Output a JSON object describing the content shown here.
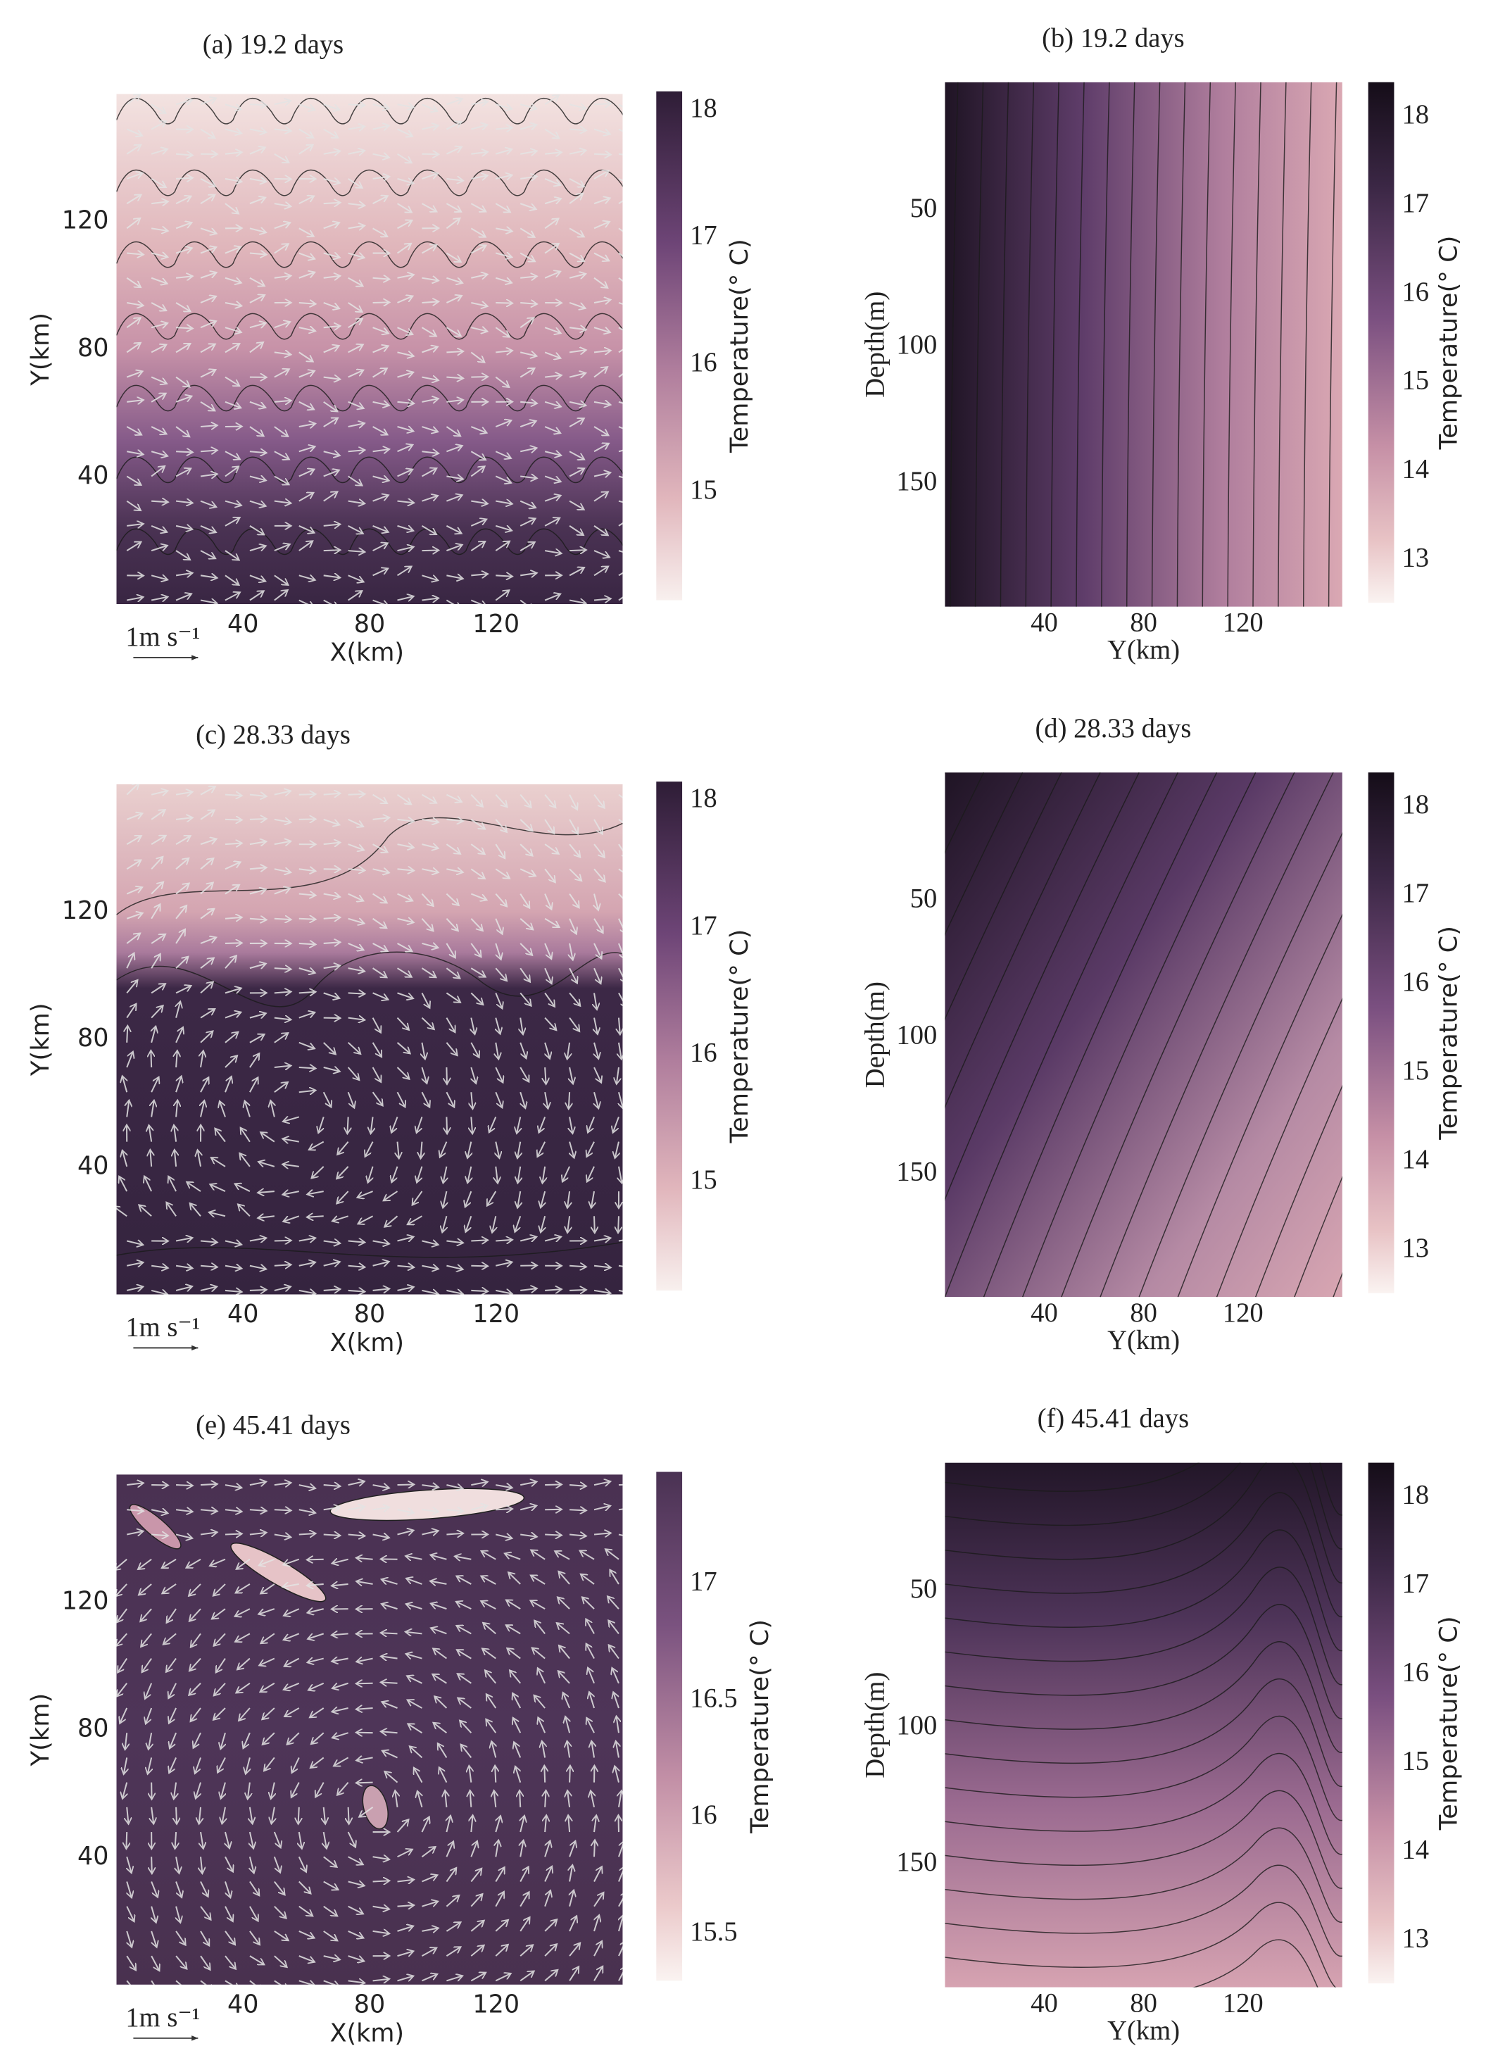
{
  "chart_data": [
    {
      "type": "heatmap",
      "title": "(a) 19.2 days",
      "xlabel": "X(km)",
      "ylabel": "Y(km)",
      "xlim": [
        0,
        160
      ],
      "ylim": [
        0,
        160
      ],
      "xticks": [
        40,
        80,
        120
      ],
      "yticks": [
        40,
        80,
        120
      ],
      "quiver_key": "1m s⁻¹",
      "colorbar": {
        "label": "Temperature(° C)",
        "lim": [
          14.15,
          18.15
        ],
        "ticks": [
          15,
          16,
          17,
          18
        ]
      }
    },
    {
      "type": "heatmap",
      "title": "(b) 19.2 days",
      "xlabel": "Y(km)",
      "ylabel": "Depth(m)",
      "xlim": [
        0,
        160
      ],
      "ylim": [
        195,
        3
      ],
      "xticks": [
        40,
        80,
        120
      ],
      "yticks": [
        50,
        100,
        150
      ],
      "colorbar": {
        "label": "Temperature(° C)",
        "lim": [
          12.52,
          18.39
        ],
        "ticks": [
          13,
          14,
          15,
          16,
          17,
          18
        ]
      }
    },
    {
      "type": "heatmap",
      "title": "(c) 28.33 days",
      "xlabel": "X(km)",
      "ylabel": "Y(km)",
      "xlim": [
        0,
        160
      ],
      "ylim": [
        0,
        160
      ],
      "xticks": [
        40,
        80,
        120
      ],
      "yticks": [
        40,
        80,
        120
      ],
      "quiver_key": "1m s⁻¹",
      "colorbar": {
        "label": "Temperature(° C)",
        "lim": [
          14.15,
          18.15
        ],
        "ticks": [
          15,
          16,
          17,
          18
        ]
      }
    },
    {
      "type": "heatmap",
      "title": "(d) 28.33 days",
      "xlabel": "Y(km)",
      "ylabel": "Depth(m)",
      "xlim": [
        0,
        160
      ],
      "ylim": [
        195,
        3
      ],
      "xticks": [
        40,
        80,
        120
      ],
      "yticks": [
        50,
        100,
        150
      ],
      "colorbar": {
        "label": "Temperature(° C)",
        "lim": [
          12.52,
          18.39
        ],
        "ticks": [
          13,
          14,
          15,
          16,
          17,
          18
        ]
      }
    },
    {
      "type": "heatmap",
      "title": "(e) 45.41 days",
      "xlabel": "X(km)",
      "ylabel": "Y(km)",
      "xlim": [
        0,
        160
      ],
      "ylim": [
        0,
        160
      ],
      "xticks": [
        40,
        80,
        120
      ],
      "yticks": [
        40,
        80,
        120
      ],
      "quiver_key": "1m s⁻¹",
      "colorbar": {
        "label": "Temperature(° C)",
        "lim": [
          15.3,
          17.48
        ],
        "ticks": [
          15.5,
          16,
          16.5,
          17
        ]
      }
    },
    {
      "type": "heatmap",
      "title": "(f) 45.41 days",
      "xlabel": "Y(km)",
      "ylabel": "Depth(m)",
      "xlim": [
        0,
        160
      ],
      "ylim": [
        195,
        3
      ],
      "xticks": [
        40,
        80,
        120
      ],
      "yticks": [
        50,
        100,
        150
      ],
      "colorbar": {
        "label": "Temperature(° C)",
        "lim": [
          12.52,
          18.39
        ],
        "ticks": [
          13,
          14,
          15,
          16,
          17,
          18
        ]
      }
    }
  ]
}
